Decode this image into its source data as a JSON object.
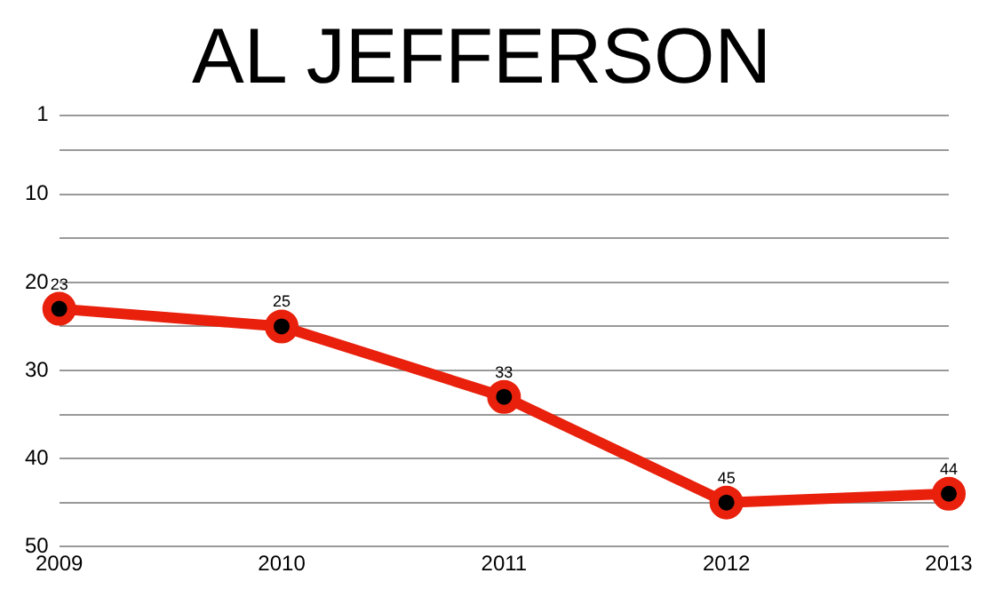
{
  "chart_data": {
    "type": "line",
    "title": "AL JEFFERSON",
    "categories": [
      "2009",
      "2010",
      "2011",
      "2012",
      "2013"
    ],
    "series": [
      {
        "color": "#e8200c",
        "values": [
          23,
          25,
          33,
          45,
          44
        ]
      }
    ],
    "ylim": [
      50,
      1
    ],
    "yticks": [
      1,
      {
        "value": 5,
        "label": null
      },
      10,
      {
        "value": 15,
        "label": null
      },
      20,
      {
        "value": 25,
        "label": null
      },
      30,
      {
        "value": 35,
        "label": null
      },
      40,
      {
        "value": 45,
        "label": null
      },
      50
    ],
    "grid": "y",
    "marker": "circle",
    "line_style": "solid",
    "data_labels": true,
    "legend": false
  }
}
